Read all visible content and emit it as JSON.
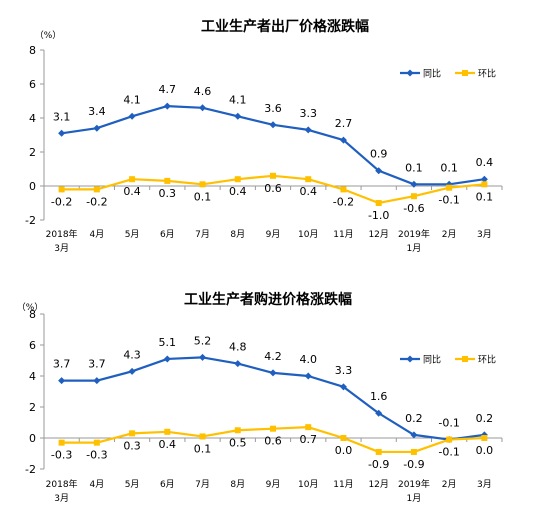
{
  "chart_data": [
    {
      "type": "line",
      "title": "工业生产者出厂价格涨跌幅",
      "unit": "（%）",
      "y_ticks": [
        "8",
        "6",
        "4",
        "2",
        "0",
        "-2"
      ],
      "ylim": [
        -2,
        8
      ],
      "categories": [
        [
          "2018年",
          "3月"
        ],
        [
          "4月"
        ],
        [
          "5月"
        ],
        [
          "6月"
        ],
        [
          "7月"
        ],
        [
          "8月"
        ],
        [
          "9月"
        ],
        [
          "10月"
        ],
        [
          "11月"
        ],
        [
          "12月"
        ],
        [
          "2019年",
          "1月"
        ],
        [
          "2月"
        ],
        [
          "3月"
        ]
      ],
      "legend_position": "top-right",
      "series": [
        {
          "name": "同比",
          "color": "#1f5fbf",
          "marker": "diamond",
          "values": [
            3.1,
            3.4,
            4.1,
            4.7,
            4.6,
            4.1,
            3.6,
            3.3,
            2.7,
            0.9,
            0.1,
            0.1,
            0.4
          ],
          "labels": [
            "3.1",
            "3.4",
            "4.1",
            "4.7",
            "4.6",
            "4.1",
            "3.6",
            "3.3",
            "2.7",
            "0.9",
            "0.1",
            "0.1",
            "0.4"
          ]
        },
        {
          "name": "环比",
          "color": "#ffc000",
          "marker": "square",
          "values": [
            -0.2,
            -0.2,
            0.4,
            0.3,
            0.1,
            0.4,
            0.6,
            0.4,
            -0.2,
            -1.0,
            -0.6,
            -0.1,
            0.1
          ],
          "labels": [
            "-0.2",
            "-0.2",
            "0.4",
            "0.3",
            "0.1",
            "0.4",
            "0.6",
            "0.4",
            "-0.2",
            "-1.0",
            "-0.6",
            "-0.1",
            "0.1"
          ]
        }
      ]
    },
    {
      "type": "line",
      "title": "工业生产者购进价格涨跌幅",
      "unit": "（%）",
      "y_ticks": [
        "8",
        "6",
        "4",
        "2",
        "0",
        "-2"
      ],
      "ylim": [
        -2,
        8
      ],
      "categories": [
        [
          "2018年",
          "3月"
        ],
        [
          "4月"
        ],
        [
          "5月"
        ],
        [
          "6月"
        ],
        [
          "7月"
        ],
        [
          "8月"
        ],
        [
          "9月"
        ],
        [
          "10月"
        ],
        [
          "11月"
        ],
        [
          "12月"
        ],
        [
          "2019年",
          "1月"
        ],
        [
          "2月"
        ],
        [
          "3月"
        ]
      ],
      "legend_position": "top-right",
      "series": [
        {
          "name": "同比",
          "color": "#1f5fbf",
          "marker": "diamond",
          "values": [
            3.7,
            3.7,
            4.3,
            5.1,
            5.2,
            4.8,
            4.2,
            4.0,
            3.3,
            1.6,
            0.2,
            -0.1,
            0.2
          ],
          "labels": [
            "3.7",
            "3.7",
            "4.3",
            "5.1",
            "5.2",
            "4.8",
            "4.2",
            "4.0",
            "3.3",
            "1.6",
            "0.2",
            "-0.1",
            "0.2"
          ]
        },
        {
          "name": "环比",
          "color": "#ffc000",
          "marker": "square",
          "values": [
            -0.3,
            -0.3,
            0.3,
            0.4,
            0.1,
            0.5,
            0.6,
            0.7,
            0.0,
            -0.9,
            -0.9,
            -0.1,
            0.0
          ],
          "labels": [
            "-0.3",
            "-0.3",
            "0.3",
            "0.4",
            "0.1",
            "0.5",
            "0.6",
            "0.7",
            "0.0",
            "-0.9",
            "-0.9",
            "-0.1",
            "0.0"
          ]
        }
      ]
    }
  ]
}
